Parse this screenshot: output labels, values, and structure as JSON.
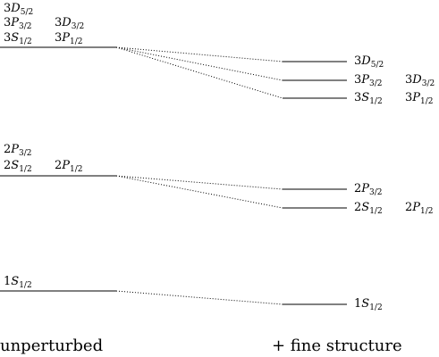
{
  "captions": {
    "left": "unperturbed",
    "right": "+ fine structure"
  },
  "n3": {
    "unperturbed": [
      "3D5/2",
      "3P3/2",
      "3D3/2",
      "3S1/2",
      "3P1/2"
    ],
    "fine": [
      [
        "3D5/2"
      ],
      [
        "3P3/2",
        "3D3/2"
      ],
      [
        "3S1/2",
        "3P1/2"
      ]
    ]
  },
  "n2": {
    "unperturbed": [
      "2P3/2",
      "2S1/2",
      "2P1/2"
    ],
    "fine": [
      [
        "2P3/2"
      ],
      [
        "2S1/2",
        "2P1/2"
      ]
    ]
  },
  "n1": {
    "unperturbed": [
      "1S1/2"
    ],
    "fine": [
      [
        "1S1/2"
      ]
    ]
  }
}
